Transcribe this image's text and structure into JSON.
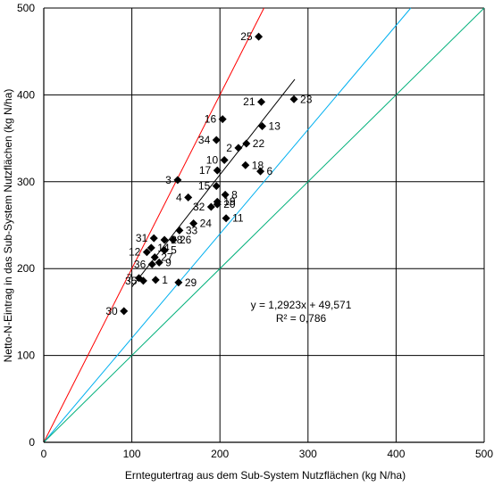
{
  "chart_data": {
    "type": "scatter",
    "xlabel": "Erntegutertrag aus dem Sub-System Nutzflächen (kg N/ha)",
    "ylabel": "Netto-N-Eintrag in das Sub-System Nutzflächen (kg N/ha)",
    "xlim": [
      0,
      500
    ],
    "ylim": [
      0,
      500
    ],
    "xticks": [
      "0",
      "100",
      "200",
      "300",
      "400",
      "500"
    ],
    "yticks": [
      "0",
      "100",
      "200",
      "300",
      "400",
      "500"
    ],
    "grid": true,
    "regression": {
      "equation": "y = 1,2923x + 49,571",
      "r2": "R² = 0,786",
      "slope": 1.2923,
      "intercept": 49.571,
      "x_range": [
        100,
        285
      ]
    },
    "reference_lines": [
      {
        "slope": 2,
        "color": "#ff0000"
      },
      {
        "slope": 1.2,
        "color": "#00b0f0"
      },
      {
        "slope": 1,
        "color": "#00b07a"
      }
    ],
    "points": [
      {
        "label": "25",
        "x": 244,
        "y": 467
      },
      {
        "label": "21",
        "x": 247,
        "y": 392
      },
      {
        "label": "23",
        "x": 284,
        "y": 395
      },
      {
        "label": "16",
        "x": 203,
        "y": 372
      },
      {
        "label": "13",
        "x": 248,
        "y": 364
      },
      {
        "label": "34",
        "x": 196,
        "y": 348
      },
      {
        "label": "22",
        "x": 230,
        "y": 344
      },
      {
        "label": "2",
        "x": 221,
        "y": 339
      },
      {
        "label": "10",
        "x": 205,
        "y": 325
      },
      {
        "label": "18",
        "x": 229,
        "y": 319
      },
      {
        "label": "17",
        "x": 197,
        "y": 313
      },
      {
        "label": "6",
        "x": 246,
        "y": 312
      },
      {
        "label": "3",
        "x": 152,
        "y": 302
      },
      {
        "label": "15",
        "x": 196,
        "y": 295
      },
      {
        "label": "8",
        "x": 206,
        "y": 285
      },
      {
        "label": "4",
        "x": 164,
        "y": 282
      },
      {
        "label": "19",
        "x": 197,
        "y": 277
      },
      {
        "label": "20",
        "x": 197,
        "y": 274
      },
      {
        "label": "32",
        "x": 190,
        "y": 271
      },
      {
        "label": "11",
        "x": 207,
        "y": 258
      },
      {
        "label": "24",
        "x": 170,
        "y": 252
      },
      {
        "label": "33",
        "x": 154,
        "y": 244
      },
      {
        "label": "31",
        "x": 125,
        "y": 235
      },
      {
        "label": "28",
        "x": 137,
        "y": 233
      },
      {
        "label": "26",
        "x": 147,
        "y": 233
      },
      {
        "label": "14",
        "x": 122,
        "y": 224
      },
      {
        "label": "5",
        "x": 137,
        "y": 221
      },
      {
        "label": "12",
        "x": 117,
        "y": 219
      },
      {
        "label": "27",
        "x": 126,
        "y": 213
      },
      {
        "label": "9",
        "x": 131,
        "y": 207
      },
      {
        "label": "36",
        "x": 123,
        "y": 205
      },
      {
        "label": "7",
        "x": 108,
        "y": 189
      },
      {
        "label": "35",
        "x": 113,
        "y": 186
      },
      {
        "label": "1",
        "x": 127,
        "y": 187
      },
      {
        "label": "29",
        "x": 153,
        "y": 184
      },
      {
        "label": "30",
        "x": 91,
        "y": 151
      }
    ]
  }
}
